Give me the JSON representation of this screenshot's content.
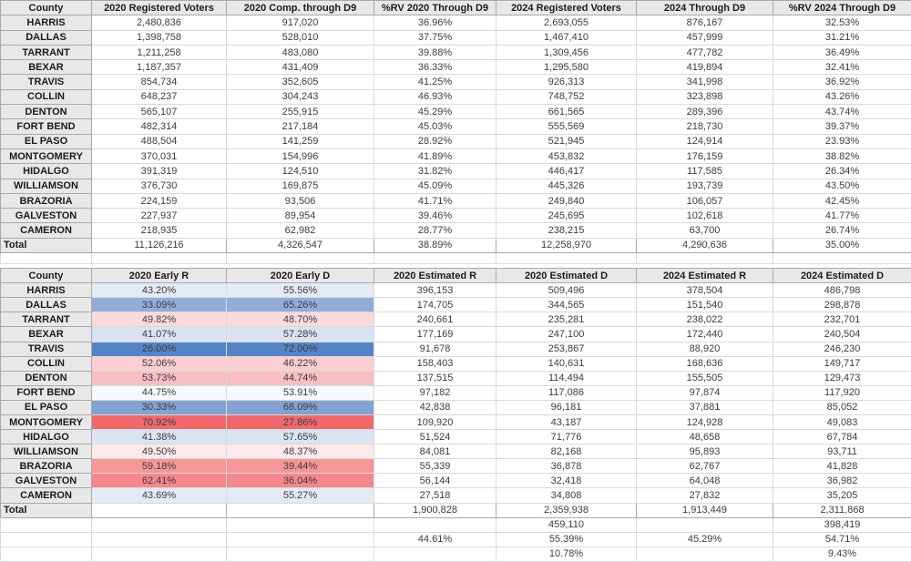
{
  "colors": {
    "header_bg": "#e8e8e8",
    "grid_border": "#d9d9d9",
    "strong_border": "#a9a9a9",
    "label_text": "#1b1b1b",
    "data_text": "#3c3c3c"
  },
  "top_table": {
    "headers": [
      "County",
      "2020 Registered Voters",
      "2020 Comp. through D9",
      "%RV 2020 Through D9",
      "2024 Registered Voters",
      "2024 Through D9",
      "%RV 2024 Through D9"
    ],
    "rows": [
      {
        "county": "HARRIS",
        "values": [
          "2,480,836",
          "917,020",
          "36.96%",
          "2,693,055",
          "876,167",
          "32.53%"
        ]
      },
      {
        "county": "DALLAS",
        "values": [
          "1,398,758",
          "528,010",
          "37.75%",
          "1,467,410",
          "457,999",
          "31.21%"
        ]
      },
      {
        "county": "TARRANT",
        "values": [
          "1,211,258",
          "483,080",
          "39.88%",
          "1,309,456",
          "477,782",
          "36.49%"
        ]
      },
      {
        "county": "BEXAR",
        "values": [
          "1,187,357",
          "431,409",
          "36.33%",
          "1,295,580",
          "419,894",
          "32.41%"
        ]
      },
      {
        "county": "TRAVIS",
        "values": [
          "854,734",
          "352,605",
          "41.25%",
          "926,313",
          "341,998",
          "36.92%"
        ]
      },
      {
        "county": "COLLIN",
        "values": [
          "648,237",
          "304,243",
          "46.93%",
          "748,752",
          "323,898",
          "43.26%"
        ]
      },
      {
        "county": "DENTON",
        "values": [
          "565,107",
          "255,915",
          "45.29%",
          "661,565",
          "289,396",
          "43.74%"
        ]
      },
      {
        "county": "FORT BEND",
        "values": [
          "482,314",
          "217,184",
          "45.03%",
          "555,569",
          "218,730",
          "39.37%"
        ]
      },
      {
        "county": "EL PASO",
        "values": [
          "488,504",
          "141,259",
          "28.92%",
          "521,945",
          "124,914",
          "23.93%"
        ]
      },
      {
        "county": "MONTGOMERY",
        "values": [
          "370,031",
          "154,996",
          "41.89%",
          "453,832",
          "176,159",
          "38.82%"
        ]
      },
      {
        "county": "HIDALGO",
        "values": [
          "391,319",
          "124,510",
          "31.82%",
          "446,417",
          "117,585",
          "26.34%"
        ]
      },
      {
        "county": "WILLIAMSON",
        "values": [
          "376,730",
          "169,875",
          "45.09%",
          "445,326",
          "193,739",
          "43.50%"
        ]
      },
      {
        "county": "BRAZORIA",
        "values": [
          "224,159",
          "93,506",
          "41.71%",
          "249,840",
          "106,057",
          "42.45%"
        ]
      },
      {
        "county": "GALVESTON",
        "values": [
          "227,937",
          "89,954",
          "39.46%",
          "245,695",
          "102,618",
          "41.77%"
        ]
      },
      {
        "county": "CAMERON",
        "values": [
          "218,935",
          "62,982",
          "28.77%",
          "238,215",
          "63,700",
          "26.74%"
        ]
      }
    ],
    "total": {
      "label": "Total",
      "values": [
        "11,126,216",
        "4,326,547",
        "38.89%",
        "12,258,970",
        "4,290,636",
        "35.00%"
      ]
    }
  },
  "bottom_table": {
    "headers": [
      "County",
      "2020 Early R",
      "2020 Early D",
      "2020 Estimated R",
      "2020 Estimated D",
      "2024 Estimated R",
      "2024 Estimated D"
    ],
    "rows": [
      {
        "county": "HARRIS",
        "color": "#e3ebf6",
        "values": [
          "43.20%",
          "55.56%",
          "396,153",
          "509,496",
          "378,504",
          "486,798"
        ]
      },
      {
        "county": "DALLAS",
        "color": "#93add7",
        "values": [
          "33.09%",
          "65.26%",
          "174,705",
          "344,565",
          "151,540",
          "298,878"
        ]
      },
      {
        "county": "TARRANT",
        "color": "#fadadd",
        "values": [
          "49.82%",
          "48.70%",
          "240,661",
          "235,281",
          "238,022",
          "232,701"
        ]
      },
      {
        "county": "BEXAR",
        "color": "#d9e3f2",
        "values": [
          "41.07%",
          "57.28%",
          "177,169",
          "247,100",
          "172,440",
          "240,504"
        ]
      },
      {
        "county": "TRAVIS",
        "color": "#5584c5",
        "values": [
          "26.00%",
          "72.00%",
          "91,678",
          "253,867",
          "88,920",
          "246,230"
        ]
      },
      {
        "county": "COLLIN",
        "color": "#fbced1",
        "values": [
          "52.06%",
          "46.22%",
          "158,403",
          "140,631",
          "168,636",
          "149,717"
        ]
      },
      {
        "county": "DENTON",
        "color": "#f9bec2",
        "values": [
          "53.73%",
          "44.74%",
          "137,515",
          "114,494",
          "155,505",
          "129,473"
        ]
      },
      {
        "county": "FORT BEND",
        "color": "#f6f9fd",
        "values": [
          "44.75%",
          "53.91%",
          "97,182",
          "117,086",
          "97,874",
          "117,920"
        ]
      },
      {
        "county": "EL PASO",
        "color": "#82a2d2",
        "values": [
          "30.33%",
          "68.09%",
          "42,838",
          "96,181",
          "37,881",
          "85,052"
        ]
      },
      {
        "county": "MONTGOMERY",
        "color": "#ef696c",
        "values": [
          "70.92%",
          "27.86%",
          "109,920",
          "43,187",
          "124,928",
          "49,083"
        ]
      },
      {
        "county": "HIDALGO",
        "color": "#dae4f2",
        "values": [
          "41.38%",
          "57.65%",
          "51,524",
          "71,776",
          "48,658",
          "67,784"
        ]
      },
      {
        "county": "WILLIAMSON",
        "color": "#fce9ea",
        "values": [
          "49.50%",
          "48.37%",
          "84,081",
          "82,168",
          "95,893",
          "93,711"
        ]
      },
      {
        "county": "BRAZORIA",
        "color": "#f79598",
        "values": [
          "59.18%",
          "39.44%",
          "55,339",
          "36,878",
          "62,767",
          "41,828"
        ]
      },
      {
        "county": "GALVESTON",
        "color": "#f5888c",
        "values": [
          "62.41%",
          "36.04%",
          "56,144",
          "32,418",
          "64,048",
          "36,982"
        ]
      },
      {
        "county": "CAMERON",
        "color": "#e3ebf6",
        "values": [
          "43.69%",
          "55.27%",
          "27,518",
          "34,808",
          "27,832",
          "35,205"
        ]
      }
    ],
    "total": {
      "label": "Total",
      "values": [
        "",
        "",
        "1,900,828",
        "2,359,938",
        "1,913,449",
        "2,311,868"
      ]
    },
    "extra_rows": [
      {
        "values": [
          "",
          "",
          "",
          "459,110",
          "",
          "398,419"
        ]
      },
      {
        "values": [
          "",
          "",
          "44.61%",
          "55.39%",
          "45.29%",
          "54.71%"
        ]
      },
      {
        "values": [
          "",
          "",
          "",
          "10.78%",
          "",
          "9.43%"
        ]
      }
    ]
  }
}
